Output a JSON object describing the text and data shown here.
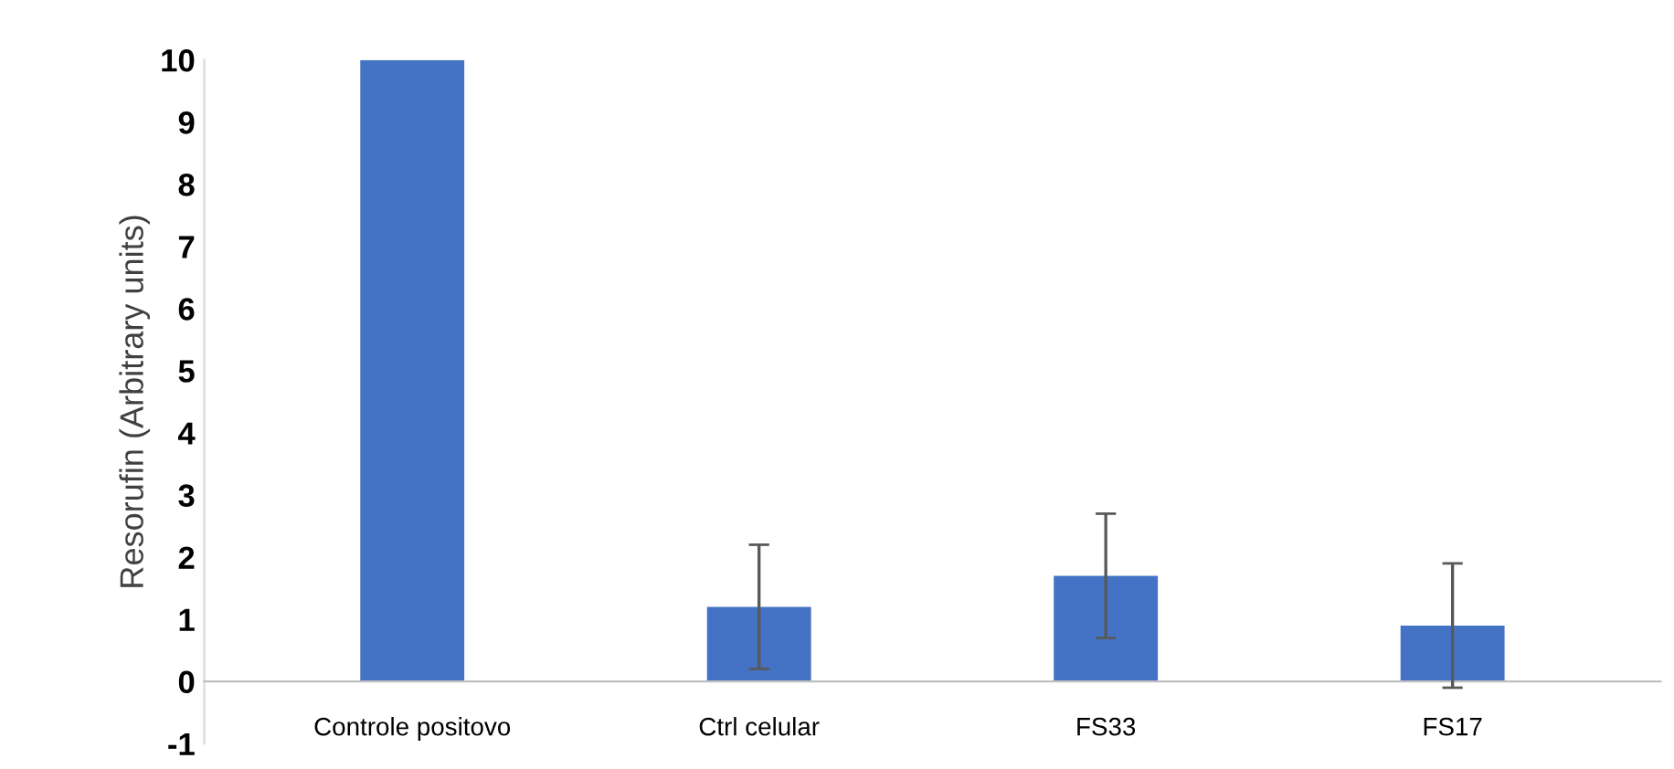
{
  "chart_data": {
    "type": "bar",
    "ylabel": "Resorufin (Arbitrary units)",
    "categories": [
      "Controle positovo",
      "Ctrl celular",
      "FS33",
      "FS17"
    ],
    "values": [
      10,
      1.2,
      1.7,
      0.9
    ],
    "errors": [
      null,
      1,
      1,
      1
    ],
    "color": "#4472c4",
    "ylim": [
      -1,
      10
    ],
    "yticks": [
      -1,
      0,
      1,
      2,
      3,
      4,
      5,
      6,
      7,
      8,
      9,
      10
    ],
    "grid": false
  }
}
